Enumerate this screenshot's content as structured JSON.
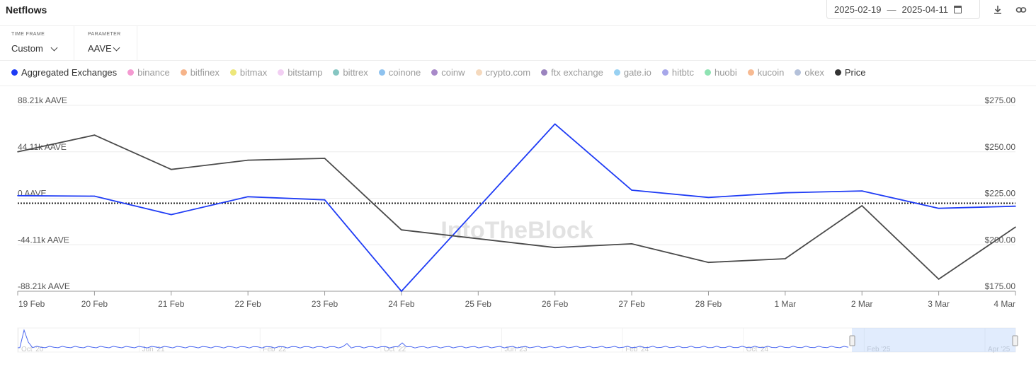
{
  "header": {
    "title": "Netflows",
    "date_from": "2025-02-19",
    "date_sep": "—",
    "date_to": "2025-04-11",
    "icons": [
      "calendar-icon",
      "download-icon",
      "link-icon"
    ]
  },
  "controls": {
    "timeframe": {
      "label": "TIME FRAME",
      "value": "Custom"
    },
    "parameter": {
      "label": "PARAMETER",
      "value": "AAVE"
    }
  },
  "legend": [
    {
      "label": "Aggregated Exchanges",
      "color": "#1f3cf5",
      "active": true
    },
    {
      "label": "binance",
      "color": "#f49ad1",
      "active": false
    },
    {
      "label": "bitfinex",
      "color": "#f6b48a",
      "active": false
    },
    {
      "label": "bitmax",
      "color": "#ede77a",
      "active": false
    },
    {
      "label": "bitstamp",
      "color": "#f2cff3",
      "active": false
    },
    {
      "label": "bittrex",
      "color": "#86c6c2",
      "active": false
    },
    {
      "label": "coinone",
      "color": "#8ec2ef",
      "active": false
    },
    {
      "label": "coinw",
      "color": "#a889c9",
      "active": false
    },
    {
      "label": "crypto.com",
      "color": "#f5d9bd",
      "active": false
    },
    {
      "label": "ftx exchange",
      "color": "#9b84bf",
      "active": false
    },
    {
      "label": "gate.io",
      "color": "#98d1f2",
      "active": false
    },
    {
      "label": "hitbtc",
      "color": "#a7a7ea",
      "active": false
    },
    {
      "label": "huobi",
      "color": "#8fe3b3",
      "active": false
    },
    {
      "label": "kucoin",
      "color": "#f7ba92",
      "active": false
    },
    {
      "label": "okex",
      "color": "#b4c1da",
      "active": false
    },
    {
      "label": "Price",
      "color": "#333333",
      "active": true
    }
  ],
  "watermark": "IntoTheBlock",
  "chart_data": {
    "type": "line",
    "categories": [
      "19 Feb",
      "20 Feb",
      "21 Feb",
      "22 Feb",
      "23 Feb",
      "24 Feb",
      "25 Feb",
      "26 Feb",
      "27 Feb",
      "28 Feb",
      "1 Mar",
      "2 Mar",
      "3 Mar",
      "4 Mar"
    ],
    "series": [
      {
        "name": "Aggregated Exchanges",
        "color": "#1f3cf5",
        "axis": "left",
        "values": [
          2500,
          2000,
          -15500,
          1500,
          -1500,
          -88210,
          null,
          70500,
          7700,
          800,
          5200,
          7000,
          -9500,
          -7500
        ]
      },
      {
        "name": "Price",
        "color": "#4a4a4a",
        "axis": "right",
        "values": [
          250.0,
          259.0,
          240.5,
          245.5,
          246.5,
          208.0,
          null,
          198.5,
          200.5,
          190.5,
          192.5,
          221.0,
          181.5,
          209.5
        ]
      }
    ],
    "left_axis": {
      "ticks": [
        "88.21k AAVE",
        "44.11k AAVE",
        "0 AAVE",
        "-44.11k AAVE",
        "-88.21k AAVE"
      ],
      "range": [
        -88210,
        88210
      ]
    },
    "right_axis": {
      "ticks": [
        "$275.00",
        "$250.00",
        "$225.00",
        "$200.00",
        "$175.00"
      ],
      "range": [
        175,
        275
      ]
    },
    "zero_line": "dotted",
    "grid": true,
    "navigator_labels": [
      "Oct '20",
      "Jun '21",
      "Feb '22",
      "Oct '22",
      "Jun '23",
      "Feb '24",
      "Oct '24",
      "Feb '25",
      "Apr '25"
    ]
  }
}
